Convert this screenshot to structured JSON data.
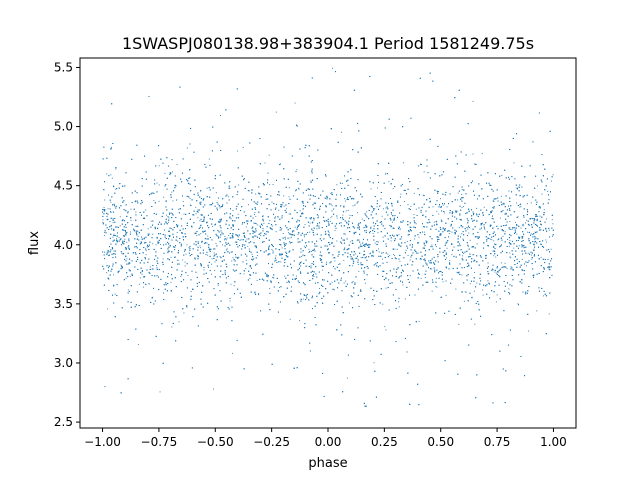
{
  "chart_data": {
    "type": "scatter",
    "title": "1SWASPJ080138.98+383904.1 Period 1581249.75s",
    "xlabel": "phase",
    "ylabel": "flux",
    "xlim": [
      -1.1,
      1.1
    ],
    "ylim": [
      2.45,
      5.58
    ],
    "x_ticks": [
      -1.0,
      -0.75,
      -0.5,
      -0.25,
      0.0,
      0.25,
      0.5,
      0.75,
      1.0
    ],
    "x_tick_labels": [
      "−1.00",
      "−0.75",
      "−0.50",
      "−0.25",
      "0.00",
      "0.25",
      "0.50",
      "0.75",
      "1.00"
    ],
    "y_ticks": [
      2.5,
      3.0,
      3.5,
      4.0,
      4.5,
      5.0,
      5.5
    ],
    "y_tick_labels": [
      "2.5",
      "3.0",
      "3.5",
      "4.0",
      "4.5",
      "5.0",
      "5.5"
    ],
    "grid": false,
    "legend": false,
    "point_color": "#1f77b4",
    "series_shape": {
      "phase_range": [
        -1.0,
        1.0
      ],
      "center_flux": 4.05,
      "core_flux_range": [
        3.45,
        4.55
      ],
      "outlier_flux_range": [
        2.6,
        5.5
      ],
      "symmetric_about_phase": 0.0
    }
  }
}
